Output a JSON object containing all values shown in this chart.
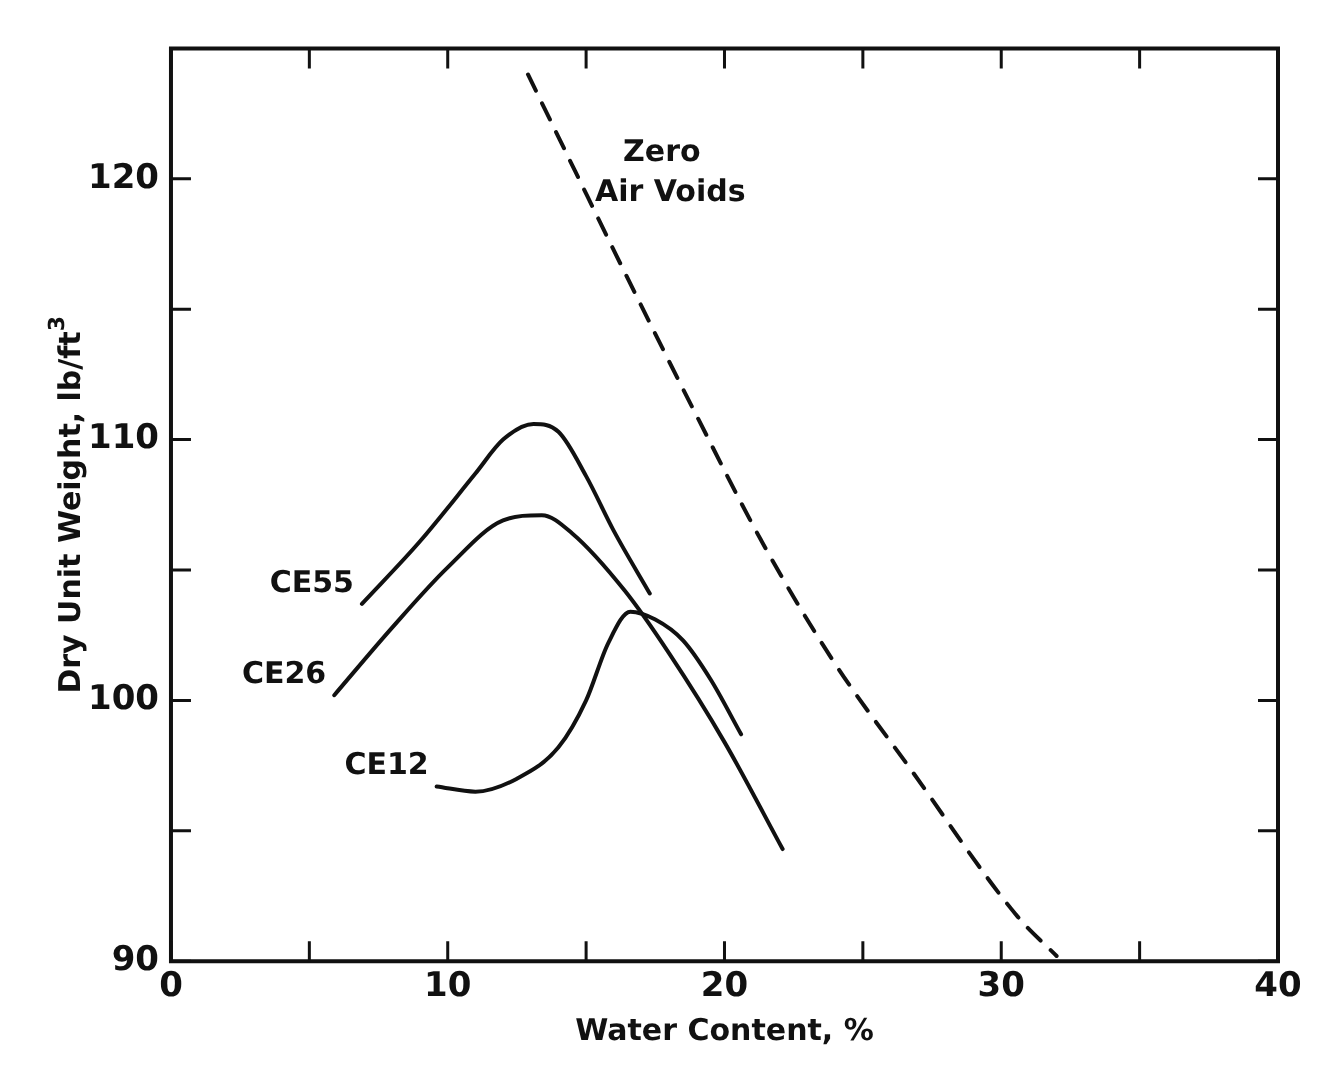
{
  "chart_data": {
    "type": "line",
    "xlabel": "Water Content, %",
    "ylabel": "Dry Unit Weight, lb/ft$^{3}$",
    "xlim": [
      0,
      40
    ],
    "ylim": [
      90,
      125
    ],
    "xticks": [
      0,
      {
        "value": 5,
        "label": null
      },
      10,
      {
        "value": 15,
        "label": null
      },
      20,
      {
        "value": 25,
        "label": null
      },
      30,
      {
        "value": 35,
        "label": null
      },
      40
    ],
    "yticks": [
      90,
      {
        "value": 95,
        "label": null
      },
      100,
      {
        "value": 105,
        "label": null
      },
      110,
      {
        "value": 115,
        "label": null
      },
      120
    ],
    "grid": false,
    "legend": false,
    "marker": "none",
    "series": [
      {
        "name": "Zero\nAir Voids",
        "color": "#111111",
        "line_style": "dashed",
        "x": [
          12.9,
          14.6,
          16.4,
          19,
          21.5,
          24,
          26.7,
          30.6,
          32.0
        ],
        "values": [
          124.0,
          120.3,
          116.4,
          110.9,
          105.8,
          101.4,
          97.4,
          91.7,
          90.2
        ]
      },
      {
        "name": "CE55",
        "color": "#111111",
        "line_style": "solid",
        "x": [
          6.9,
          9,
          11,
          12,
          13.1,
          14,
          15,
          16,
          17.3
        ],
        "values": [
          103.7,
          106.1,
          108.7,
          110,
          110.6,
          110.3,
          108.6,
          106.5,
          104.1
        ]
      },
      {
        "name": "CE26",
        "color": "#111111",
        "line_style": "solid",
        "x": [
          5.9,
          8,
          10,
          12,
          13.4,
          14.5,
          16.4,
          18,
          20,
          22.1
        ],
        "values": [
          100.2,
          102.8,
          105.1,
          106.9,
          107.1,
          106.4,
          104.2,
          101.8,
          98.4,
          94.3
        ]
      },
      {
        "name": "CE12",
        "color": "#111111",
        "line_style": "solid",
        "x": [
          9.6,
          11,
          12.5,
          14,
          15,
          15.8,
          16.6,
          17.5,
          18.5,
          19.5,
          20.6
        ],
        "values": [
          96.7,
          96.5,
          97,
          98.2,
          100,
          102.2,
          103.4,
          103.1,
          102.3,
          100.8,
          98.7
        ]
      }
    ]
  }
}
